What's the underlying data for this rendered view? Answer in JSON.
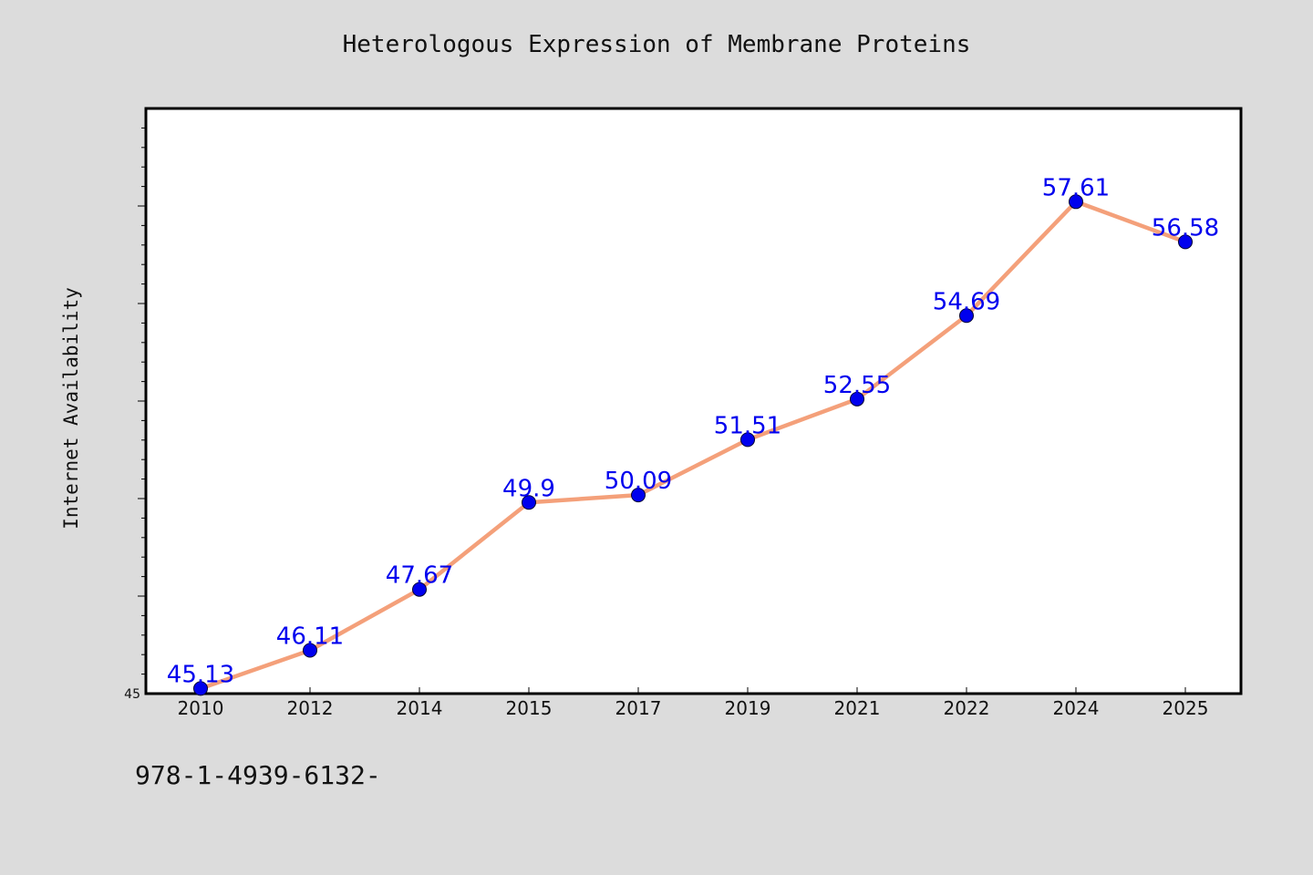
{
  "chart_data": {
    "type": "line",
    "title": "Heterologous Expression of Membrane Proteins",
    "xlabel": "",
    "ylabel": "Internet Availability",
    "categories": [
      "2010",
      "2012",
      "2014",
      "2015",
      "2017",
      "2019",
      "2021",
      "2022",
      "2024",
      "2025"
    ],
    "values": [
      45.13,
      46.11,
      47.67,
      49.9,
      50.09,
      51.51,
      52.55,
      54.69,
      57.61,
      56.58
    ],
    "data_labels": [
      "45.13",
      "46.11",
      "47.67",
      "49.9",
      "50.09",
      "51.51",
      "52.55",
      "54.69",
      "57.61",
      "56.58"
    ],
    "ylim": [
      45,
      60
    ],
    "y_tick_labels": [
      "45"
    ],
    "grid": false,
    "legend": "none",
    "colors": {
      "line": "#f4a07a",
      "marker": "#0000ee",
      "data_label": "#0000ee",
      "plot_background": "#ffffff",
      "page_background": "#dcdcdc"
    }
  },
  "footer": {
    "code": "978-1-4939-6132-"
  }
}
